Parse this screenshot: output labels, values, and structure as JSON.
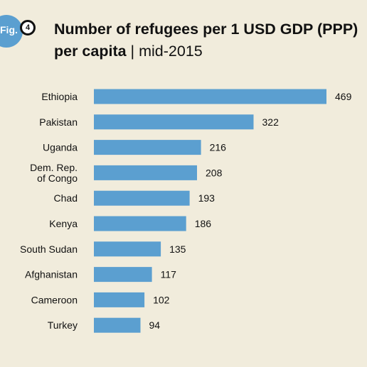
{
  "figure": {
    "label": "Fig.",
    "number": "4",
    "title_main": "Number of refugees per 1 USD GDP (PPP) per capita",
    "title_sep": " | ",
    "title_date": "mid-2015"
  },
  "colors": {
    "background": "#f1ecdc",
    "bar": "#5b9fd0",
    "badge": "#5b9fd0",
    "text": "#111111"
  },
  "chart_data": {
    "type": "bar",
    "orientation": "horizontal",
    "title": "Number of refugees per 1 USD GDP (PPP) per capita | mid-2015",
    "categories": [
      [
        "Ethiopia"
      ],
      [
        "Pakistan"
      ],
      [
        "Uganda"
      ],
      [
        "Dem. Rep.",
        "of Congo"
      ],
      [
        "Chad"
      ],
      [
        "Kenya"
      ],
      [
        "South Sudan"
      ],
      [
        "Afghanistan"
      ],
      [
        "Cameroon"
      ],
      [
        "Turkey"
      ]
    ],
    "values": [
      469,
      322,
      216,
      208,
      193,
      186,
      135,
      117,
      102,
      94
    ],
    "value_labels": [
      "469",
      "322",
      "216",
      "208",
      "193",
      "186",
      "135",
      "117",
      "102",
      "94"
    ],
    "xlim": [
      0,
      469
    ],
    "grid": false,
    "legend": "none"
  }
}
